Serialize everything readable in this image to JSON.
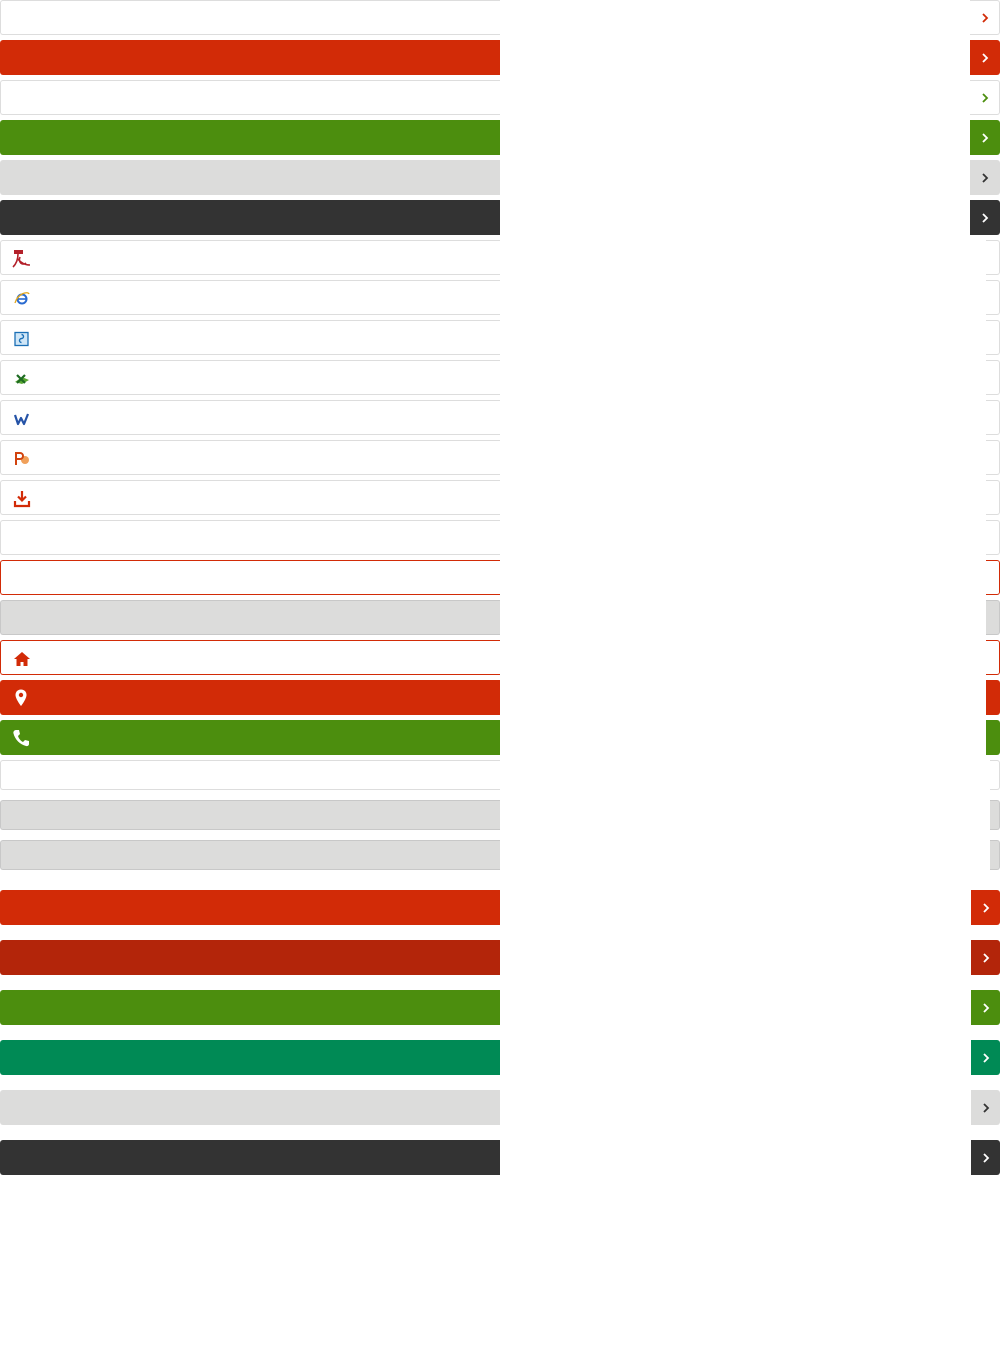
{
  "colors": {
    "red": "#d22b07",
    "dark_red": "#b3250a",
    "green": "#4c8e0e",
    "teal": "#008a55",
    "light_gray": "#dcdcdb",
    "dark_gray": "#333333",
    "border_gray": "#dddddd",
    "white": "#ffffff"
  },
  "links": [
    {
      "name": "link-white-red-chevron",
      "label": ""
    },
    {
      "name": "link-red",
      "label": ""
    },
    {
      "name": "link-white-green-chevron",
      "label": ""
    },
    {
      "name": "link-green",
      "label": ""
    },
    {
      "name": "link-light-gray",
      "label": ""
    },
    {
      "name": "link-dark",
      "label": ""
    }
  ],
  "file_links": [
    {
      "icon": "pdf-icon",
      "label": ""
    },
    {
      "icon": "internet-explorer-icon",
      "label": ""
    },
    {
      "icon": "ebook-icon",
      "label": ""
    },
    {
      "icon": "excel-icon",
      "label": ""
    },
    {
      "icon": "word-icon",
      "label": ""
    },
    {
      "icon": "powerpoint-icon",
      "label": ""
    },
    {
      "icon": "download-icon",
      "label": ""
    }
  ],
  "contact_links": [
    {
      "icon": "home-icon",
      "label": ""
    },
    {
      "icon": "map-pin-icon",
      "label": ""
    },
    {
      "icon": "phone-icon",
      "label": ""
    }
  ],
  "buttons": [
    {
      "name": "button-red",
      "label": ""
    },
    {
      "name": "button-dark-red",
      "label": ""
    },
    {
      "name": "button-green",
      "label": ""
    },
    {
      "name": "button-teal",
      "label": ""
    },
    {
      "name": "button-light-gray",
      "label": ""
    },
    {
      "name": "button-dark",
      "label": ""
    }
  ]
}
